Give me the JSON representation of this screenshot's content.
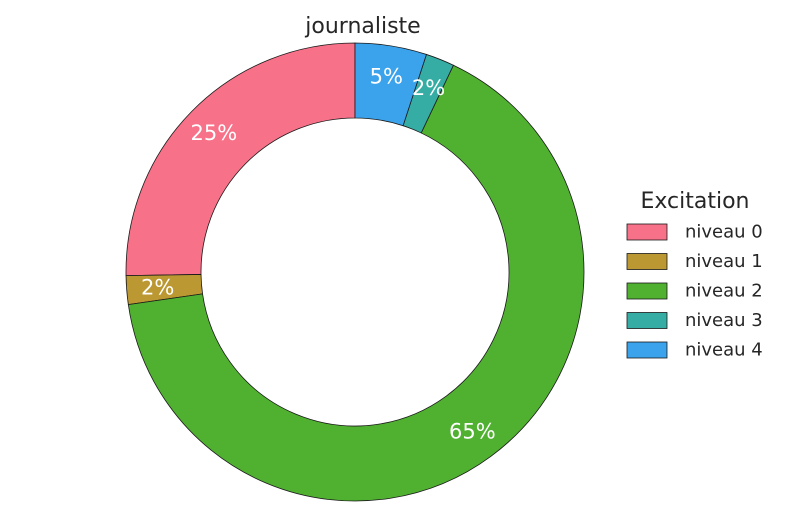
{
  "chart_data": {
    "type": "pie",
    "donut": true,
    "title": "journaliste",
    "legend_title": "Excitation",
    "legend_position": "right",
    "start_angle_deg": 90,
    "direction": "counterclockwise",
    "slices": [
      {
        "label": "niveau 0",
        "value": 25,
        "display": "25%",
        "color": "#f77189"
      },
      {
        "label": "niveau 1",
        "value": 2,
        "display": "2%",
        "color": "#bb9832"
      },
      {
        "label": "niveau 2",
        "value": 65,
        "display": "65%",
        "color": "#50b131"
      },
      {
        "label": "niveau 3",
        "value": 2,
        "display": "2%",
        "color": "#36ada4"
      },
      {
        "label": "niveau 4",
        "value": 5,
        "display": "5%",
        "color": "#3ba3ec"
      }
    ]
  }
}
